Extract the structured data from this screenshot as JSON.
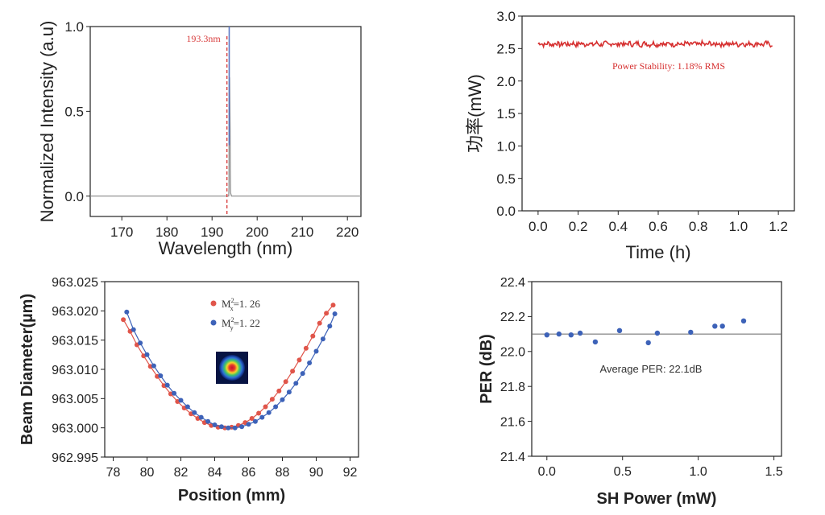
{
  "chart_data": [
    {
      "id": "spectrum",
      "type": "line",
      "xlabel": "Wavelength (nm)",
      "ylabel": "Normalized Intensity (a.u)",
      "xlim": [
        163,
        223
      ],
      "ylim": [
        -0.12,
        1.0
      ],
      "xticks": [
        170,
        180,
        190,
        200,
        210,
        220
      ],
      "yticks": [
        0.0,
        0.5,
        1.0
      ],
      "ytick_labels": [
        "0.0",
        "0.5",
        "1.0"
      ],
      "marker_x": 193.3,
      "marker_label": "193.3nm",
      "series": [
        {
          "color": "#5a78c8",
          "x": [
            163,
            193.7,
            193.75,
            193.8,
            193.85,
            193.9,
            193.95,
            194.0,
            194.05,
            194.1,
            194.3,
            223
          ],
          "y": [
            0.0,
            0.0,
            0.05,
            1.0,
            0.45,
            0.7,
            0.55,
            0.4,
            0.15,
            0.02,
            0.0,
            0.0
          ]
        }
      ],
      "colors": {
        "marker": "#d94040",
        "axis": "#333333"
      }
    },
    {
      "id": "stability",
      "type": "line",
      "xlabel": "Time (h)",
      "ylabel": "功率(mW)",
      "xlim": [
        -0.08,
        1.28
      ],
      "ylim": [
        0.0,
        3.0
      ],
      "xticks": [
        0.0,
        0.2,
        0.4,
        0.6,
        0.8,
        1.0,
        1.2
      ],
      "xtick_labels": [
        "0.0",
        "0.2",
        "0.4",
        "0.6",
        "0.8",
        "1.0",
        "1.2"
      ],
      "yticks": [
        0.0,
        0.5,
        1.0,
        1.5,
        2.0,
        2.5,
        3.0
      ],
      "ytick_labels": [
        "0.0",
        "0.5",
        "1.0",
        "1.5",
        "2.0",
        "2.5",
        "3.0"
      ],
      "annotation": "Power Stability: 1.18% RMS",
      "series": [
        {
          "color": "#d63030",
          "mean": 2.57,
          "noise": 0.035,
          "x_start": 0.0,
          "x_end": 1.17
        }
      ],
      "colors": {
        "annotation": "#d63030"
      }
    },
    {
      "id": "beam",
      "type": "line",
      "xlabel": "Position (mm)",
      "ylabel": "Beam Diameter(µm)",
      "xlim": [
        77.5,
        92.5
      ],
      "ylim": [
        962.995,
        963.025
      ],
      "xticks": [
        78,
        80,
        82,
        84,
        86,
        88,
        90,
        92
      ],
      "xtick_labels": [
        "78",
        "80",
        "82",
        "84",
        "86",
        "88",
        "90",
        "92"
      ],
      "yticks": [
        962.995,
        963.0,
        963.005,
        963.01,
        963.015,
        963.02,
        963.025
      ],
      "ytick_labels": [
        "962.995",
        "963.000",
        "963.005",
        "963.010",
        "963.015",
        "963.020",
        "963.025"
      ],
      "series": [
        {
          "color": "#e0554a",
          "label_main": "M",
          "label_sub": "x",
          "label_sup": "2",
          "label_value": "=1. 26",
          "x": [
            78.6,
            79.0,
            79.4,
            79.8,
            80.2,
            80.6,
            81.0,
            81.4,
            81.8,
            82.2,
            82.6,
            83.0,
            83.4,
            83.8,
            84.2,
            84.6,
            85.0,
            85.4,
            85.8,
            86.2,
            86.6,
            87.0,
            87.4,
            87.8,
            88.2,
            88.6,
            89.0,
            89.4,
            89.8,
            90.2,
            90.6,
            91.0
          ],
          "y": [
            963.0185,
            963.0165,
            963.0142,
            963.0123,
            963.0105,
            963.0088,
            963.0072,
            963.0058,
            963.0045,
            963.0034,
            963.0024,
            963.0016,
            963.0009,
            963.0004,
            963.0001,
            963.0,
            963.0001,
            963.0004,
            963.0009,
            963.0016,
            963.0025,
            963.0036,
            963.0049,
            963.0063,
            963.0079,
            963.0097,
            963.0116,
            963.0136,
            963.0157,
            963.0179,
            963.0196,
            963.021
          ]
        },
        {
          "color": "#3d62b8",
          "label_main": "M",
          "label_sub": "y",
          "label_sup": "2",
          "label_value": "=1. 22",
          "x": [
            78.8,
            79.2,
            79.6,
            80.0,
            80.4,
            80.8,
            81.2,
            81.6,
            82.0,
            82.4,
            82.8,
            83.2,
            83.6,
            84.0,
            84.4,
            84.8,
            85.2,
            85.6,
            86.0,
            86.4,
            86.8,
            87.2,
            87.6,
            88.0,
            88.4,
            88.8,
            89.2,
            89.6,
            90.0,
            90.4,
            90.8,
            91.1
          ],
          "y": [
            963.0198,
            963.0168,
            963.0145,
            963.0125,
            963.0106,
            963.0089,
            963.0073,
            963.0059,
            963.0047,
            963.0036,
            963.0026,
            963.0018,
            963.0011,
            963.0005,
            963.0002,
            963.0,
            963.0,
            963.0002,
            963.0006,
            963.0011,
            963.0018,
            963.0026,
            963.0036,
            963.0048,
            963.0061,
            963.0076,
            963.0093,
            963.0111,
            963.0131,
            963.0152,
            963.0174,
            963.0195
          ]
        }
      ]
    },
    {
      "id": "per",
      "type": "scatter",
      "xlabel": "SH Power (mW)",
      "ylabel": "PER (dB)",
      "xlim": [
        -0.1,
        1.55
      ],
      "ylim": [
        21.4,
        22.4
      ],
      "xticks": [
        0.0,
        0.5,
        1.0,
        1.5
      ],
      "xtick_labels": [
        "0.0",
        "0.5",
        "1.0",
        "1.5"
      ],
      "yticks": [
        21.4,
        21.6,
        21.8,
        22.0,
        22.2,
        22.4
      ],
      "ytick_labels": [
        "21.4",
        "21.6",
        "21.8",
        "22.0",
        "22.2",
        "22.4"
      ],
      "reference_y": 22.1,
      "annotation": "Average PER: 22.1dB",
      "series": [
        {
          "color": "#3d62b8",
          "x": [
            0.0,
            0.08,
            0.16,
            0.22,
            0.32,
            0.48,
            0.67,
            0.73,
            0.95,
            1.11,
            1.16,
            1.3
          ],
          "y": [
            22.095,
            22.1,
            22.095,
            22.105,
            22.055,
            22.12,
            22.05,
            22.105,
            22.11,
            22.145,
            22.145,
            22.175
          ]
        }
      ]
    }
  ]
}
